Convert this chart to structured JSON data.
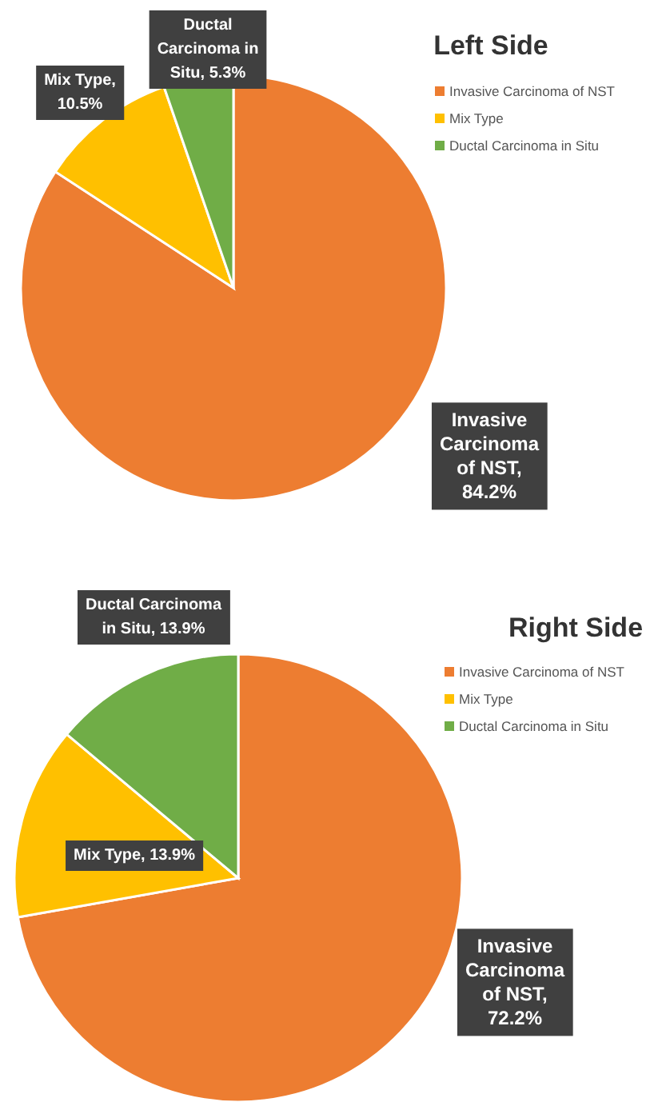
{
  "chart_data": [
    {
      "type": "pie",
      "title": "Left Side",
      "categories": [
        "Invasive Carcinoma of NST",
        "Mix Type",
        "Ductal Carcinoma in Situ"
      ],
      "values": [
        84.2,
        10.5,
        5.3
      ],
      "colors": [
        "#ed7d31",
        "#ffc000",
        "#70ad47"
      ],
      "value_labels": [
        "Invasive Carcinoma of NST, 84.2%",
        "Mix Type, 10.5%",
        "Ductal Carcinoma in Situ, 5.3%"
      ],
      "legend": "right"
    },
    {
      "type": "pie",
      "title": "Right Side",
      "categories": [
        "Invasive Carcinoma of NST",
        "Mix Type",
        "Ductal Carcinoma in Situ"
      ],
      "values": [
        72.2,
        13.9,
        13.9
      ],
      "colors": [
        "#ed7d31",
        "#ffc000",
        "#70ad47"
      ],
      "value_labels": [
        "Invasive Carcinoma of NST, 72.2%",
        "Mix Type, 13.9%",
        "Ductal Carcinoma in Situ, 13.9%"
      ],
      "legend": "right"
    }
  ]
}
